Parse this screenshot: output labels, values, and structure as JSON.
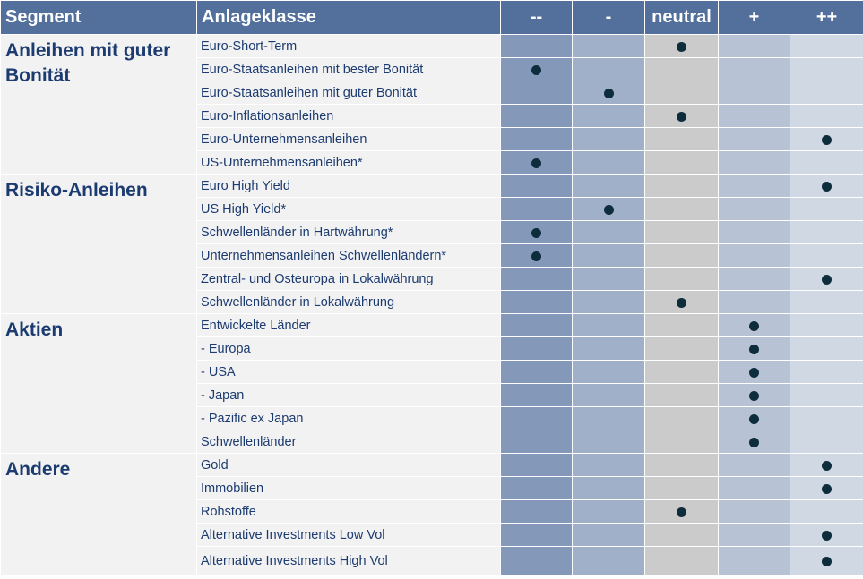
{
  "headers": {
    "segment": "Segment",
    "class": "Anlageklasse",
    "ratings": [
      "--",
      "-",
      "neutral",
      "+",
      "++"
    ]
  },
  "colors": {
    "header": "#53709d",
    "dot": "#0d2c3c",
    "text": "#1c3b70"
  },
  "segments": [
    {
      "name": "Anleihen mit guter Bonität",
      "rows": [
        {
          "label": "Euro-Short-Term",
          "rating": 2
        },
        {
          "label": "Euro-Staatsanleihen mit bester Bonität",
          "rating": 0
        },
        {
          "label": "Euro-Staatsanleihen mit guter Bonität",
          "rating": 1
        },
        {
          "label": "Euro-Inflationsanleihen",
          "rating": 2
        },
        {
          "label": "Euro-Unternehmensanleihen",
          "rating": 4
        },
        {
          "label": "US-Unternehmensanleihen*",
          "rating": 0
        }
      ]
    },
    {
      "name": "Risiko-Anleihen",
      "rows": [
        {
          "label": "Euro High Yield",
          "rating": 4
        },
        {
          "label": "US High Yield*",
          "rating": 1
        },
        {
          "label": "Schwellenländer in Hartwährung*",
          "rating": 0
        },
        {
          "label": "Unternehmensanleihen Schwellenländern*",
          "rating": 0
        },
        {
          "label": "Zentral- und Osteuropa in Lokalwährung",
          "rating": 4
        },
        {
          "label": "Schwellenländer in Lokalwährung",
          "rating": 2
        }
      ]
    },
    {
      "name": "Aktien",
      "rows": [
        {
          "label": "Entwickelte Länder",
          "rating": 3
        },
        {
          "label": "- Europa",
          "rating": 3
        },
        {
          "label": "- USA",
          "rating": 3
        },
        {
          "label": "- Japan",
          "rating": 3
        },
        {
          "label": "- Pazific ex Japan",
          "rating": 3
        },
        {
          "label": "Schwellenländer",
          "rating": 3
        }
      ]
    },
    {
      "name": "Andere",
      "rows": [
        {
          "label": "Gold",
          "rating": 4
        },
        {
          "label": "Immobilien",
          "rating": 4
        },
        {
          "label": "Rohstoffe",
          "rating": 2
        },
        {
          "label": "Alternative Investments Low Vol",
          "rating": 4
        },
        {
          "label": "Alternative Investments High Vol",
          "rating": 4
        }
      ]
    }
  ]
}
